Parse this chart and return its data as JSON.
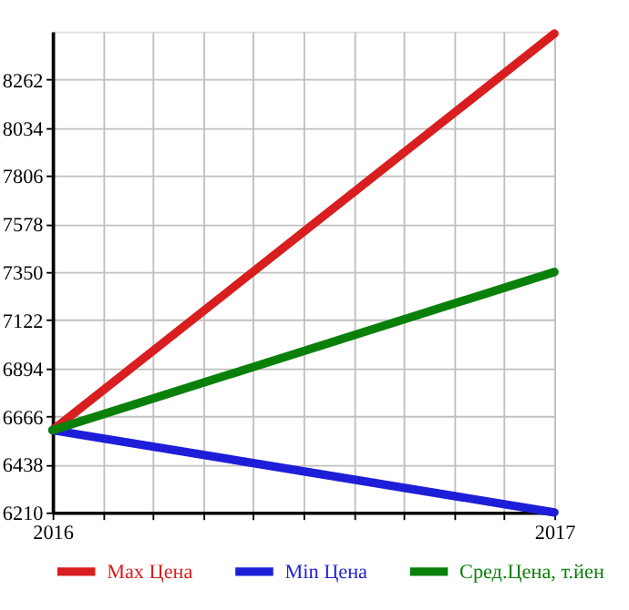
{
  "chart_data": {
    "type": "line",
    "x": [
      2016,
      2017
    ],
    "series": [
      {
        "name": "Max Цена",
        "color": "#d81e1e",
        "values": [
          6600,
          8480
        ]
      },
      {
        "name": "Min Цена",
        "color": "#1e1ed8",
        "values": [
          6600,
          6210
        ]
      },
      {
        "name": "Сред.Цена, т.йен",
        "color": "#0a800a",
        "values": [
          6600,
          7350
        ]
      }
    ],
    "xlim": [
      2016,
      2017
    ],
    "xticks": [
      2016,
      {
        "value": 2016.1,
        "label": null
      },
      {
        "value": 2016.2,
        "label": null
      },
      {
        "value": 2016.3,
        "label": null
      },
      {
        "value": 2016.4,
        "label": null
      },
      {
        "value": 2016.5,
        "label": null
      },
      {
        "value": 2016.6,
        "label": null
      },
      {
        "value": 2016.7,
        "label": null
      },
      {
        "value": 2016.8,
        "label": null
      },
      {
        "value": 2016.9,
        "label": null
      },
      2017
    ],
    "ylim": [
      6210,
      8490
    ],
    "yticks": [
      6210,
      6438,
      6666,
      6894,
      7122,
      7350,
      7578,
      7806,
      8034,
      8262
    ],
    "grid": true,
    "legend": "bottom",
    "marker": "none",
    "line_style": "solid"
  }
}
